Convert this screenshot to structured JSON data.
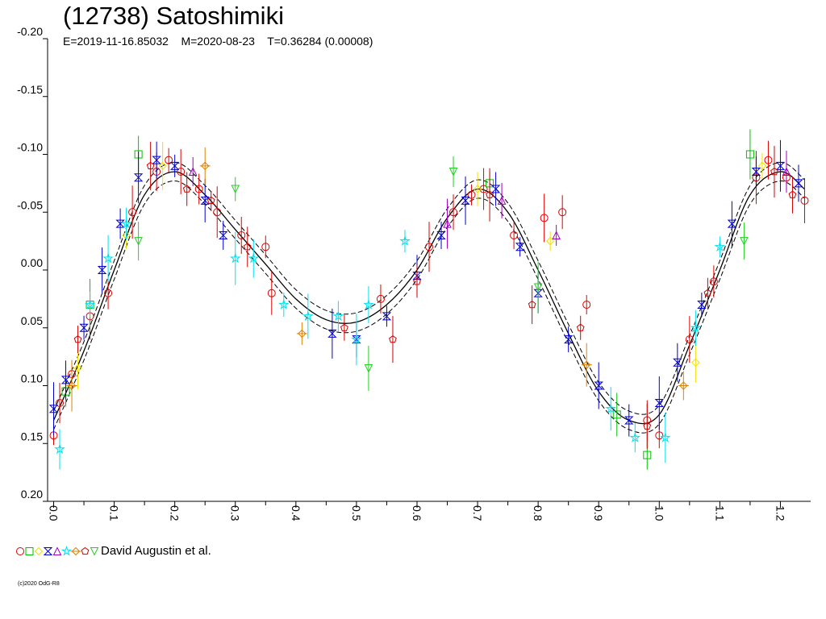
{
  "header": {
    "title": "(12738) Satoshimiki",
    "subtitle": "E=2019-11-16.85032    M=2020-08-23    T=0.36284 (0.00008)"
  },
  "legend": {
    "label": "David Augustin et al."
  },
  "footer": {
    "copyright": "(c)2020 OdG-R8"
  },
  "chart_data": {
    "type": "scatter",
    "xlabel": "",
    "ylabel": "",
    "xlim": [
      -0.01,
      1.25
    ],
    "ylim": [
      -0.2,
      0.2
    ],
    "y_inverted": true,
    "grid": false,
    "x_ticks": [
      "0.0",
      "0.1",
      "0.2",
      "0.3",
      "0.4",
      "0.5",
      "0.6",
      "0.7",
      "0.8",
      "0.9",
      "1.0",
      "1.1",
      "1.2"
    ],
    "y_ticks": [
      "-0.20",
      "-0.15",
      "-0.10",
      "-0.05",
      "0.00",
      "0.05",
      "0.10",
      "0.15",
      "0.20"
    ],
    "fit_curve": {
      "x": [
        0.0,
        0.05,
        0.1,
        0.15,
        0.2,
        0.25,
        0.3,
        0.35,
        0.4,
        0.45,
        0.5,
        0.55,
        0.6,
        0.65,
        0.7,
        0.75,
        0.8,
        0.85,
        0.9,
        0.95,
        1.0,
        1.05,
        1.1,
        1.15,
        1.2,
        1.24
      ],
      "y": [
        0.13,
        0.07,
        0.0,
        -0.065,
        -0.085,
        -0.065,
        -0.035,
        -0.005,
        0.025,
        0.043,
        0.045,
        0.03,
        0.0,
        -0.045,
        -0.07,
        -0.05,
        0.0,
        0.055,
        0.105,
        0.13,
        0.125,
        0.065,
        0.0,
        -0.065,
        -0.085,
        -0.07
      ]
    },
    "series": [
      {
        "name": "",
        "marker": "circle",
        "color": "#e00000",
        "points": [
          [
            0.0,
            0.143
          ],
          [
            0.01,
            0.115
          ],
          [
            0.03,
            0.09
          ],
          [
            0.06,
            0.04
          ],
          [
            0.09,
            0.02
          ],
          [
            0.13,
            -0.05
          ],
          [
            0.17,
            -0.085
          ],
          [
            0.19,
            -0.095
          ],
          [
            0.21,
            -0.085
          ],
          [
            0.24,
            -0.07
          ],
          [
            0.27,
            -0.05
          ],
          [
            0.31,
            -0.03
          ],
          [
            0.35,
            -0.02
          ],
          [
            0.36,
            0.02
          ],
          [
            0.54,
            0.025
          ],
          [
            0.62,
            -0.02
          ],
          [
            0.66,
            -0.05
          ],
          [
            0.69,
            -0.065
          ],
          [
            0.71,
            -0.07
          ],
          [
            0.76,
            -0.03
          ],
          [
            0.81,
            -0.045
          ],
          [
            0.84,
            -0.05
          ],
          [
            0.88,
            0.03
          ],
          [
            0.98,
            0.13
          ],
          [
            1.0,
            0.143
          ],
          [
            1.05,
            0.06
          ],
          [
            1.09,
            0.01
          ],
          [
            1.16,
            -0.08
          ],
          [
            1.18,
            -0.095
          ],
          [
            1.21,
            -0.08
          ],
          [
            1.24,
            -0.06
          ]
        ]
      },
      {
        "name": "",
        "marker": "square",
        "color": "#00c000",
        "points": [
          [
            0.02,
            0.105
          ],
          [
            0.06,
            0.03
          ],
          [
            0.14,
            -0.1
          ],
          [
            0.72,
            -0.075
          ],
          [
            0.93,
            0.125
          ],
          [
            0.98,
            0.16
          ],
          [
            1.15,
            -0.1
          ]
        ]
      },
      {
        "name": "",
        "marker": "diamond",
        "color": "#f0e000",
        "points": [
          [
            0.04,
            0.085
          ],
          [
            0.12,
            -0.03
          ],
          [
            0.18,
            -0.09
          ],
          [
            0.7,
            -0.07
          ],
          [
            0.82,
            -0.025
          ],
          [
            1.06,
            0.08
          ],
          [
            1.17,
            -0.09
          ]
        ]
      },
      {
        "name": "",
        "marker": "bowtie",
        "color": "#0000d0",
        "points": [
          [
            0.0,
            0.12
          ],
          [
            0.02,
            0.095
          ],
          [
            0.05,
            0.05
          ],
          [
            0.08,
            0.0
          ],
          [
            0.11,
            -0.04
          ],
          [
            0.14,
            -0.08
          ],
          [
            0.17,
            -0.095
          ],
          [
            0.2,
            -0.09
          ],
          [
            0.25,
            -0.06
          ],
          [
            0.28,
            -0.03
          ],
          [
            0.46,
            0.055
          ],
          [
            0.5,
            0.06
          ],
          [
            0.55,
            0.04
          ],
          [
            0.6,
            0.005
          ],
          [
            0.64,
            -0.03
          ],
          [
            0.68,
            -0.06
          ],
          [
            0.73,
            -0.07
          ],
          [
            0.77,
            -0.02
          ],
          [
            0.8,
            0.02
          ],
          [
            0.85,
            0.06
          ],
          [
            0.9,
            0.1
          ],
          [
            0.95,
            0.13
          ],
          [
            1.0,
            0.115
          ],
          [
            1.03,
            0.08
          ],
          [
            1.07,
            0.03
          ],
          [
            1.12,
            -0.04
          ],
          [
            1.16,
            -0.085
          ],
          [
            1.2,
            -0.09
          ],
          [
            1.23,
            -0.075
          ]
        ]
      },
      {
        "name": "",
        "marker": "triangle-up",
        "color": "#a000c0",
        "points": [
          [
            0.23,
            -0.085
          ],
          [
            0.65,
            -0.04
          ],
          [
            0.74,
            -0.06
          ],
          [
            0.83,
            -0.03
          ],
          [
            1.21,
            -0.085
          ]
        ]
      },
      {
        "name": "",
        "marker": "star",
        "color": "#00e0f0",
        "points": [
          [
            0.01,
            0.155
          ],
          [
            0.06,
            0.03
          ],
          [
            0.09,
            -0.01
          ],
          [
            0.12,
            -0.04
          ],
          [
            0.3,
            -0.01
          ],
          [
            0.33,
            -0.01
          ],
          [
            0.38,
            0.03
          ],
          [
            0.42,
            0.04
          ],
          [
            0.47,
            0.04
          ],
          [
            0.5,
            0.06
          ],
          [
            0.52,
            0.03
          ],
          [
            0.58,
            -0.025
          ],
          [
            0.92,
            0.12
          ],
          [
            0.96,
            0.145
          ],
          [
            1.01,
            0.145
          ],
          [
            1.06,
            0.05
          ],
          [
            1.1,
            -0.02
          ]
        ]
      },
      {
        "name": "",
        "marker": "diamond-cross",
        "color": "#e08000",
        "points": [
          [
            0.03,
            0.1
          ],
          [
            0.25,
            -0.09
          ],
          [
            0.41,
            0.055
          ],
          [
            0.88,
            0.082
          ],
          [
            1.04,
            0.1
          ]
        ]
      },
      {
        "name": "",
        "marker": "pentagon",
        "color": "#d00000",
        "points": [
          [
            0.04,
            0.06
          ],
          [
            0.16,
            -0.09
          ],
          [
            0.22,
            -0.07
          ],
          [
            0.26,
            -0.06
          ],
          [
            0.32,
            -0.02
          ],
          [
            0.48,
            0.05
          ],
          [
            0.56,
            0.06
          ],
          [
            0.6,
            0.01
          ],
          [
            0.72,
            -0.065
          ],
          [
            0.79,
            0.03
          ],
          [
            0.87,
            0.05
          ],
          [
            0.98,
            0.135
          ],
          [
            1.08,
            0.02
          ],
          [
            1.19,
            -0.085
          ],
          [
            1.22,
            -0.065
          ]
        ]
      },
      {
        "name": "",
        "marker": "triangle-down",
        "color": "#20d020",
        "points": [
          [
            0.14,
            -0.025
          ],
          [
            0.3,
            -0.07
          ],
          [
            0.52,
            0.085
          ],
          [
            0.66,
            -0.085
          ],
          [
            0.8,
            0.015
          ],
          [
            1.14,
            -0.025
          ]
        ]
      }
    ]
  }
}
